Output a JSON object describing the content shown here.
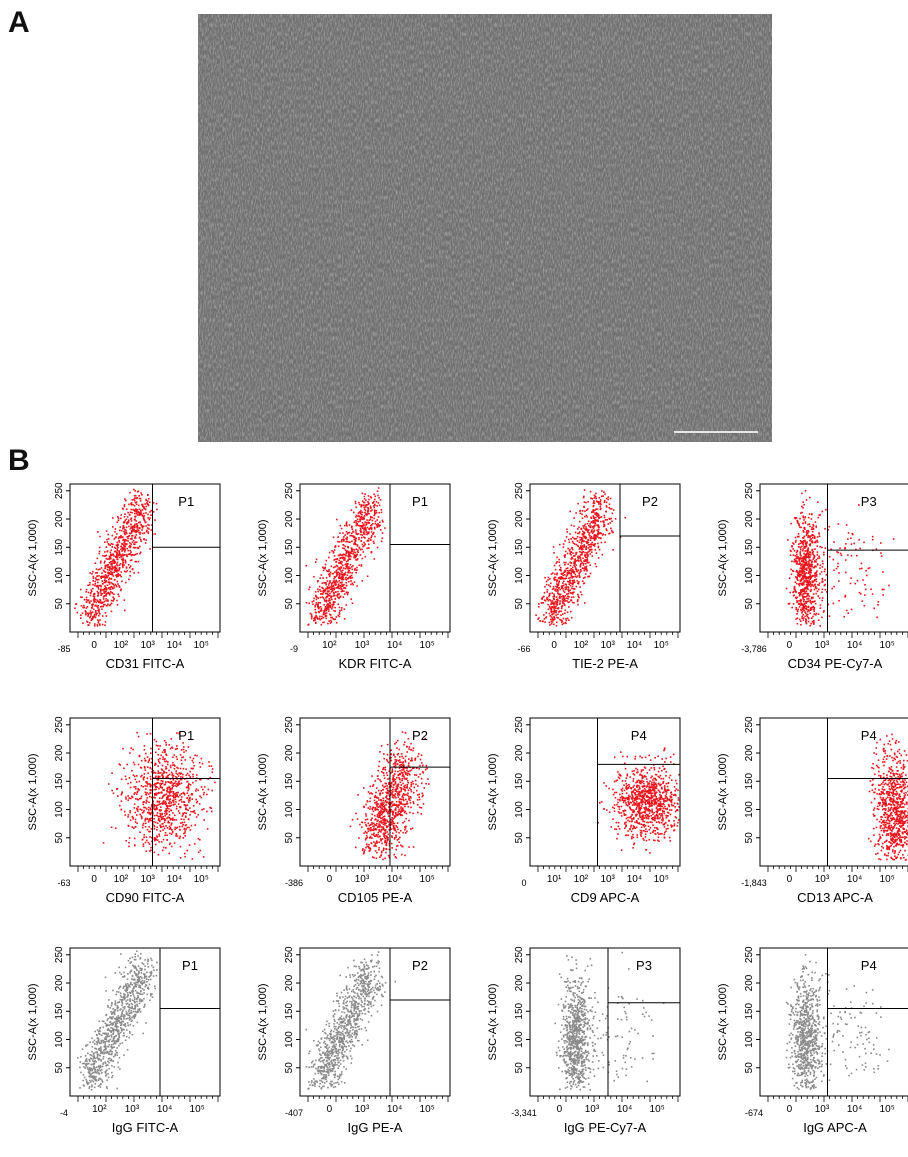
{
  "panel_labels": {
    "a": "A",
    "b": "B"
  },
  "colors": {
    "stained": "#e8141c",
    "isotype": "#8a8a8a",
    "axis": "#000000"
  },
  "micrograph": {
    "description_scale_bar": true
  },
  "axes": {
    "y_label": "SSC-A(x 1,000)",
    "y_ticks": [
      "50",
      "100",
      "150",
      "200",
      "250"
    ]
  },
  "chart_data": [
    {
      "type": "scatter",
      "xlabel": "CD31 FITC-A",
      "x_min": "-85",
      "x_ticks": [
        "0",
        "10²",
        "10³",
        "10⁴",
        "10⁵"
      ],
      "gate": "P1",
      "color": "stained",
      "pattern": "diag",
      "gate_x": 0.55,
      "gate_y": 150
    },
    {
      "type": "scatter",
      "xlabel": "KDR FITC-A",
      "x_min": "-9",
      "x_ticks": [
        "10²",
        "10³",
        "10⁴",
        "10⁵"
      ],
      "gate": "P1",
      "color": "stained",
      "pattern": "diag",
      "gate_x": 0.6,
      "gate_y": 155
    },
    {
      "type": "scatter",
      "xlabel": "TIE-2 PE-A",
      "x_min": "-66",
      "x_ticks": [
        "0",
        "10²",
        "10³",
        "10⁴",
        "10⁵"
      ],
      "gate": "P2",
      "color": "stained",
      "pattern": "diag",
      "gate_x": 0.6,
      "gate_y": 170
    },
    {
      "type": "scatter",
      "xlabel": "CD34 PE-Cy7-A",
      "x_min": "-3,786",
      "x_ticks": [
        "0",
        "10³",
        "10⁴",
        "10⁵"
      ],
      "gate": "P3",
      "color": "stained",
      "pattern": "tall",
      "gate_x": 0.45,
      "gate_y": 145
    },
    {
      "type": "scatter",
      "xlabel": "CD90 FITC-A",
      "x_min": "-63",
      "x_ticks": [
        "0",
        "10²",
        "10³",
        "10⁴",
        "10⁵"
      ],
      "gate": "P1",
      "color": "stained",
      "pattern": "wide",
      "gate_x": 0.55,
      "gate_y": 155
    },
    {
      "type": "scatter",
      "xlabel": "CD105 PE-A",
      "x_min": "-386",
      "x_ticks": [
        "0",
        "10³",
        "10⁴",
        "10⁵"
      ],
      "gate": "P2",
      "color": "stained",
      "pattern": "right",
      "gate_x": 0.6,
      "gate_y": 175
    },
    {
      "type": "scatter",
      "xlabel": "CD9 APC-A",
      "x_min": "0",
      "x_ticks": [
        "10¹",
        "10²",
        "10³",
        "10⁴",
        "10⁵"
      ],
      "gate": "P4",
      "color": "stained",
      "pattern": "blob",
      "gate_x": 0.45,
      "gate_y": 180
    },
    {
      "type": "scatter",
      "xlabel": "CD13 APC-A",
      "x_min": "-1,843",
      "x_ticks": [
        "0",
        "10³",
        "10⁴",
        "10⁵"
      ],
      "gate": "P4",
      "color": "stained",
      "pattern": "edge",
      "gate_x": 0.45,
      "gate_y": 155
    },
    {
      "type": "scatter",
      "xlabel": "IgG FITC-A",
      "x_min": "-4",
      "x_ticks": [
        "10²",
        "10³",
        "10⁴",
        "10⁵"
      ],
      "gate": "P1",
      "color": "isotype",
      "pattern": "diag",
      "gate_x": 0.6,
      "gate_y": 155
    },
    {
      "type": "scatter",
      "xlabel": "IgG PE-A",
      "x_min": "-407",
      "x_ticks": [
        "0",
        "10³",
        "10⁴",
        "10⁵"
      ],
      "gate": "P2",
      "color": "isotype",
      "pattern": "diag",
      "gate_x": 0.6,
      "gate_y": 170
    },
    {
      "type": "scatter",
      "xlabel": "IgG PE-Cy7-A",
      "x_min": "-3,341",
      "x_ticks": [
        "0",
        "10³",
        "10⁴",
        "10⁵"
      ],
      "gate": "P3",
      "color": "isotype",
      "pattern": "tall",
      "gate_x": 0.52,
      "gate_y": 165
    },
    {
      "type": "scatter",
      "xlabel": "IgG APC-A",
      "x_min": "-674",
      "x_ticks": [
        "0",
        "10³",
        "10⁴",
        "10⁵"
      ],
      "gate": "P4",
      "color": "isotype",
      "pattern": "tall",
      "gate_x": 0.45,
      "gate_y": 155
    }
  ]
}
